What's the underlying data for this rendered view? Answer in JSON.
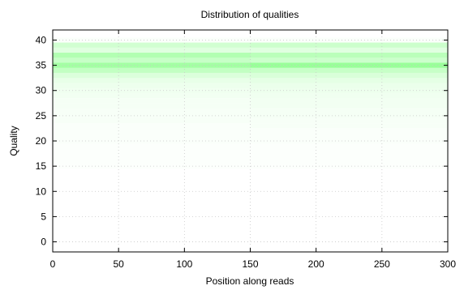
{
  "chart_data": {
    "type": "heatmap",
    "title": "Distribution of qualities",
    "xlabel": "Position along reads",
    "ylabel": "Quality",
    "xlim": [
      0,
      300
    ],
    "ylim": [
      -2,
      42
    ],
    "xticks": [
      0,
      50,
      100,
      150,
      200,
      250,
      300
    ],
    "yticks": [
      0,
      5,
      10,
      15,
      20,
      25,
      30,
      35,
      40
    ],
    "grid": true,
    "color": "#00ff00",
    "segments": [
      {
        "x_start": 0,
        "x_end": 150,
        "quality_density": [
          {
            "q": 15,
            "d": 0.01
          },
          {
            "q": 16,
            "d": 0.01
          },
          {
            "q": 17,
            "d": 0.01
          },
          {
            "q": 18,
            "d": 0.01
          },
          {
            "q": 19,
            "d": 0.01
          },
          {
            "q": 20,
            "d": 0.02
          },
          {
            "q": 21,
            "d": 0.02
          },
          {
            "q": 22,
            "d": 0.02
          },
          {
            "q": 23,
            "d": 0.02
          },
          {
            "q": 24,
            "d": 0.03
          },
          {
            "q": 25,
            "d": 0.03
          },
          {
            "q": 26,
            "d": 0.03
          },
          {
            "q": 27,
            "d": 0.04
          },
          {
            "q": 28,
            "d": 0.04
          },
          {
            "q": 29,
            "d": 0.05
          },
          {
            "q": 30,
            "d": 0.06
          },
          {
            "q": 31,
            "d": 0.07
          },
          {
            "q": 32,
            "d": 0.09
          },
          {
            "q": 33,
            "d": 0.14
          },
          {
            "q": 34,
            "d": 0.24
          },
          {
            "q": 35,
            "d": 0.36
          },
          {
            "q": 36,
            "d": 0.22
          },
          {
            "q": 37,
            "d": 0.3
          },
          {
            "q": 38,
            "d": 0.12
          },
          {
            "q": 39,
            "d": 0.18
          },
          {
            "q": 40,
            "d": 0.02
          }
        ]
      },
      {
        "x_start": 150,
        "x_end": 300,
        "quality_density": [
          {
            "q": 15,
            "d": 0.01
          },
          {
            "q": 16,
            "d": 0.01
          },
          {
            "q": 17,
            "d": 0.01
          },
          {
            "q": 18,
            "d": 0.01
          },
          {
            "q": 19,
            "d": 0.01
          },
          {
            "q": 20,
            "d": 0.02
          },
          {
            "q": 21,
            "d": 0.02
          },
          {
            "q": 22,
            "d": 0.02
          },
          {
            "q": 23,
            "d": 0.03
          },
          {
            "q": 24,
            "d": 0.03
          },
          {
            "q": 25,
            "d": 0.04
          },
          {
            "q": 26,
            "d": 0.04
          },
          {
            "q": 27,
            "d": 0.05
          },
          {
            "q": 28,
            "d": 0.05
          },
          {
            "q": 29,
            "d": 0.06
          },
          {
            "q": 30,
            "d": 0.07
          },
          {
            "q": 31,
            "d": 0.08
          },
          {
            "q": 32,
            "d": 0.1
          },
          {
            "q": 33,
            "d": 0.15
          },
          {
            "q": 34,
            "d": 0.22
          },
          {
            "q": 35,
            "d": 0.4
          },
          {
            "q": 36,
            "d": 0.2
          },
          {
            "q": 37,
            "d": 0.27
          },
          {
            "q": 38,
            "d": 0.12
          },
          {
            "q": 39,
            "d": 0.2
          },
          {
            "q": 40,
            "d": 0.02
          }
        ]
      }
    ]
  }
}
